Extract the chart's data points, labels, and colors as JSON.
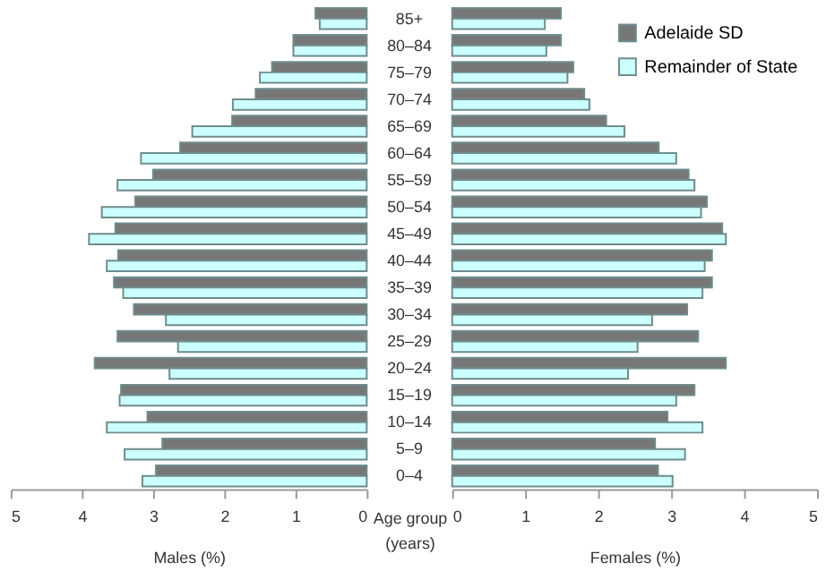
{
  "chart_data": [
    {
      "type": "bar",
      "orientation": "horizontal",
      "xlabel": "Males (%)",
      "ylabel": "Age group (years)",
      "xlim": [
        5,
        0
      ],
      "xticks": [
        5,
        4,
        3,
        2,
        1,
        0
      ],
      "grid": false,
      "categories": [
        "85+",
        "80–84",
        "75–79",
        "70–74",
        "65–69",
        "60–64",
        "55–59",
        "50–54",
        "45–49",
        "40–44",
        "35–39",
        "30–34",
        "25–29",
        "20–24",
        "15–19",
        "10–14",
        "5–9",
        "0–4"
      ],
      "series": [
        {
          "color": "#777777",
          "values": [
            0.72,
            1.03,
            1.33,
            1.56,
            1.89,
            2.62,
            3.0,
            3.25,
            3.53,
            3.49,
            3.55,
            3.27,
            3.5,
            3.82,
            3.45,
            3.08,
            2.87,
            2.96
          ]
        },
        {
          "color": "#ccffff",
          "values": [
            0.66,
            1.03,
            1.5,
            1.88,
            2.45,
            3.17,
            3.5,
            3.72,
            3.9,
            3.65,
            3.42,
            2.82,
            2.65,
            2.77,
            3.47,
            3.65,
            3.4,
            3.15
          ]
        }
      ]
    },
    {
      "type": "bar",
      "orientation": "horizontal",
      "xlabel": "Females (%)",
      "xlim": [
        0,
        5
      ],
      "xticks": [
        0,
        1,
        2,
        3,
        4,
        5
      ],
      "grid": false,
      "legend": "top right",
      "tick_labels": "x",
      "categories": [
        null,
        null,
        null,
        null,
        null,
        null,
        null,
        null,
        null,
        null,
        null,
        null,
        null,
        null,
        null,
        null,
        null,
        null
      ],
      "series": [
        {
          "name": "Adelaide SD",
          "color": "#777777",
          "values": [
            1.49,
            1.49,
            1.66,
            1.81,
            2.11,
            2.83,
            3.24,
            3.49,
            3.7,
            3.56,
            3.56,
            3.22,
            3.37,
            3.75,
            3.32,
            2.95,
            2.78,
            2.82
          ]
        },
        {
          "name": "Remainder of State",
          "color": "#ccffff",
          "values": [
            1.27,
            1.29,
            1.58,
            1.88,
            2.36,
            3.07,
            3.32,
            3.41,
            3.75,
            3.46,
            3.43,
            2.74,
            2.54,
            2.41,
            3.07,
            3.43,
            3.19,
            3.02
          ]
        }
      ]
    }
  ]
}
